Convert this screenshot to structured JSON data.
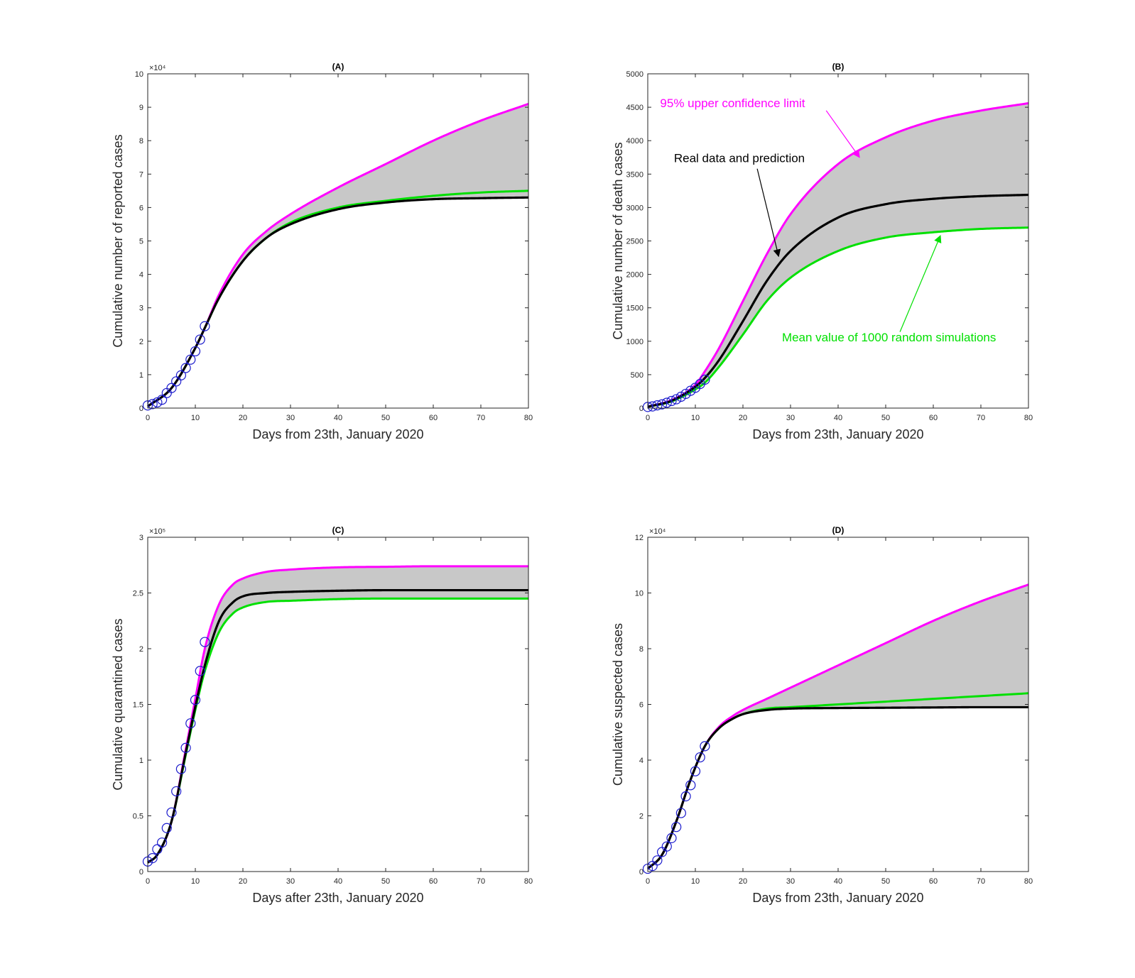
{
  "colors": {
    "upper": "#ff00ff",
    "mean": "#00e000",
    "real": "#000000",
    "band": "#c8c8c8",
    "data_marker": "#1a1acc"
  },
  "chart_data": [
    {
      "type": "area",
      "title": "(A)",
      "xlabel": "Days from 23th, January 2020",
      "ylabel": "Cumulative number of reported cases",
      "exponent_label": "×10⁴",
      "xlim": [
        0,
        80
      ],
      "ylim": [
        0,
        10
      ],
      "xticks": [
        "0",
        "10",
        "20",
        "30",
        "40",
        "50",
        "60",
        "70",
        "80"
      ],
      "yticks": [
        "0",
        "1",
        "2",
        "3",
        "4",
        "5",
        "6",
        "7",
        "8",
        "9",
        "10"
      ],
      "grid": false,
      "series": [
        {
          "role": "upper",
          "x": [
            0,
            5,
            10,
            12,
            15,
            20,
            25,
            30,
            40,
            50,
            60,
            70,
            80
          ],
          "y": [
            0.05,
            0.6,
            1.8,
            2.4,
            3.4,
            4.6,
            5.3,
            5.8,
            6.6,
            7.3,
            8.0,
            8.6,
            9.1
          ]
        },
        {
          "role": "mean",
          "x": [
            0,
            5,
            10,
            12,
            15,
            20,
            25,
            30,
            40,
            50,
            60,
            70,
            80
          ],
          "y": [
            0.05,
            0.6,
            1.8,
            2.4,
            3.3,
            4.4,
            5.1,
            5.55,
            6.0,
            6.2,
            6.35,
            6.45,
            6.5
          ]
        },
        {
          "role": "real",
          "x": [
            0,
            5,
            10,
            12,
            15,
            20,
            25,
            30,
            40,
            50,
            60,
            70,
            80
          ],
          "y": [
            0.05,
            0.6,
            1.8,
            2.4,
            3.3,
            4.4,
            5.1,
            5.5,
            5.95,
            6.15,
            6.25,
            6.28,
            6.3
          ]
        }
      ],
      "points": {
        "x": [
          0,
          1,
          2,
          3,
          4,
          5,
          6,
          7,
          8,
          9,
          10,
          11,
          12
        ],
        "y": [
          0.08,
          0.12,
          0.17,
          0.25,
          0.45,
          0.6,
          0.8,
          0.98,
          1.2,
          1.45,
          1.7,
          2.05,
          2.45
        ]
      },
      "annotations": []
    },
    {
      "type": "area",
      "title": "(B)",
      "xlabel": "Days from 23th, January 2020",
      "ylabel": "Cumulative number of death cases",
      "exponent_label": "",
      "xlim": [
        0,
        80
      ],
      "ylim": [
        0,
        5000
      ],
      "xticks": [
        "0",
        "10",
        "20",
        "30",
        "40",
        "50",
        "60",
        "70",
        "80"
      ],
      "yticks": [
        "0",
        "500",
        "1000",
        "1500",
        "2000",
        "2500",
        "3000",
        "3500",
        "4000",
        "4500",
        "5000"
      ],
      "grid": false,
      "series": [
        {
          "role": "upper",
          "x": [
            0,
            5,
            10,
            12,
            15,
            20,
            25,
            30,
            40,
            50,
            60,
            70,
            80
          ],
          "y": [
            20,
            120,
            350,
            550,
            900,
            1600,
            2300,
            2900,
            3650,
            4050,
            4300,
            4450,
            4560
          ]
        },
        {
          "role": "mean",
          "x": [
            0,
            5,
            10,
            12,
            15,
            20,
            25,
            30,
            40,
            50,
            60,
            70,
            80
          ],
          "y": [
            20,
            100,
            280,
            380,
            620,
            1100,
            1600,
            1950,
            2350,
            2550,
            2630,
            2680,
            2700
          ]
        },
        {
          "role": "real",
          "x": [
            0,
            5,
            10,
            12,
            15,
            20,
            25,
            30,
            40,
            50,
            60,
            70,
            80
          ],
          "y": [
            20,
            110,
            320,
            450,
            720,
            1300,
            1900,
            2350,
            2850,
            3050,
            3130,
            3170,
            3190
          ]
        }
      ],
      "points": {
        "x": [
          0,
          1,
          2,
          3,
          4,
          5,
          6,
          7,
          8,
          9,
          10,
          11,
          12
        ],
        "y": [
          17,
          25,
          41,
          56,
          80,
          106,
          132,
          170,
          213,
          259,
          304,
          361,
          425
        ]
      },
      "annotations": [
        {
          "text": "95% upper confidence limit",
          "role": "upper",
          "text_x": 2.6,
          "text_y": 4500,
          "arrow_from": [
            37.5,
            4450
          ],
          "arrow_to": [
            44.5,
            3750
          ]
        },
        {
          "text": "Real data and prediction",
          "role": "real",
          "text_x": 5.5,
          "text_y": 3680,
          "arrow_from": [
            23,
            3580
          ],
          "arrow_to": [
            27.5,
            2270
          ]
        },
        {
          "text": "Mean value of 1000 random simulations",
          "role": "mean",
          "text_x": 28.2,
          "text_y": 1000,
          "arrow_from": [
            53,
            1140
          ],
          "arrow_to": [
            61.5,
            2580
          ]
        }
      ]
    },
    {
      "type": "area",
      "title": "(C)",
      "xlabel": "Days after 23th, January 2020",
      "ylabel": "Cumulative quarantined cases",
      "exponent_label": "×10⁵",
      "xlim": [
        0,
        80
      ],
      "ylim": [
        0,
        3
      ],
      "xticks": [
        "0",
        "10",
        "20",
        "30",
        "40",
        "50",
        "60",
        "70",
        "80"
      ],
      "yticks": [
        "0",
        "0.5",
        "1",
        "1.5",
        "2",
        "2.5",
        "3"
      ],
      "grid": false,
      "series": [
        {
          "role": "upper",
          "x": [
            0,
            2,
            5,
            8,
            10,
            12,
            15,
            18,
            20,
            25,
            30,
            40,
            50,
            60,
            70,
            80
          ],
          "y": [
            0.08,
            0.15,
            0.45,
            1.1,
            1.55,
            2.0,
            2.4,
            2.58,
            2.63,
            2.69,
            2.71,
            2.73,
            2.735,
            2.74,
            2.74,
            2.74
          ]
        },
        {
          "role": "mean",
          "x": [
            0,
            2,
            5,
            8,
            10,
            12,
            15,
            18,
            20,
            25,
            30,
            40,
            50,
            60,
            70,
            80
          ],
          "y": [
            0.08,
            0.15,
            0.45,
            1.05,
            1.45,
            1.8,
            2.15,
            2.32,
            2.37,
            2.42,
            2.43,
            2.445,
            2.45,
            2.45,
            2.45,
            2.45
          ]
        },
        {
          "role": "real",
          "x": [
            0,
            2,
            5,
            8,
            10,
            12,
            15,
            18,
            20,
            25,
            30,
            40,
            50,
            60,
            70,
            80
          ],
          "y": [
            0.08,
            0.15,
            0.45,
            1.07,
            1.48,
            1.85,
            2.25,
            2.42,
            2.47,
            2.5,
            2.51,
            2.52,
            2.525,
            2.525,
            2.525,
            2.525
          ]
        }
      ],
      "points": {
        "x": [
          0,
          1,
          2,
          3,
          4,
          5,
          6,
          7,
          8,
          9,
          10,
          11,
          12
        ],
        "y": [
          0.09,
          0.12,
          0.2,
          0.26,
          0.39,
          0.53,
          0.72,
          0.92,
          1.11,
          1.33,
          1.54,
          1.8,
          2.06
        ]
      },
      "annotations": []
    },
    {
      "type": "area",
      "title": "(D)",
      "xlabel": "Days from 23th, January 2020",
      "ylabel": "Cumulative suspected cases",
      "exponent_label": "×10⁴",
      "xlim": [
        0,
        80
      ],
      "ylim": [
        0,
        12
      ],
      "xticks": [
        "0",
        "10",
        "20",
        "30",
        "40",
        "50",
        "60",
        "70",
        "80"
      ],
      "yticks": [
        "0",
        "2",
        "4",
        "6",
        "8",
        "10",
        "12"
      ],
      "grid": false,
      "series": [
        {
          "role": "upper",
          "x": [
            0,
            3,
            6,
            9,
            12,
            15,
            18,
            20,
            25,
            30,
            40,
            50,
            60,
            70,
            80
          ],
          "y": [
            0.1,
            0.6,
            1.8,
            3.3,
            4.5,
            5.2,
            5.6,
            5.8,
            6.2,
            6.6,
            7.4,
            8.2,
            9.0,
            9.7,
            10.3
          ]
        },
        {
          "role": "mean",
          "x": [
            0,
            3,
            6,
            9,
            12,
            15,
            18,
            20,
            25,
            30,
            40,
            50,
            60,
            70,
            80
          ],
          "y": [
            0.1,
            0.6,
            1.8,
            3.3,
            4.5,
            5.15,
            5.5,
            5.65,
            5.85,
            5.9,
            6.0,
            6.1,
            6.2,
            6.3,
            6.4
          ]
        },
        {
          "role": "real",
          "x": [
            0,
            3,
            6,
            9,
            12,
            15,
            18,
            20,
            25,
            30,
            40,
            50,
            60,
            70,
            80
          ],
          "y": [
            0.1,
            0.6,
            1.8,
            3.3,
            4.5,
            5.15,
            5.5,
            5.65,
            5.8,
            5.85,
            5.87,
            5.88,
            5.89,
            5.9,
            5.9
          ]
        }
      ],
      "points": {
        "x": [
          0,
          1,
          2,
          3,
          4,
          5,
          6,
          7,
          8,
          9,
          10,
          11,
          12
        ],
        "y": [
          0.1,
          0.2,
          0.4,
          0.7,
          0.9,
          1.2,
          1.6,
          2.1,
          2.7,
          3.1,
          3.6,
          4.1,
          4.5
        ]
      },
      "annotations": []
    }
  ]
}
